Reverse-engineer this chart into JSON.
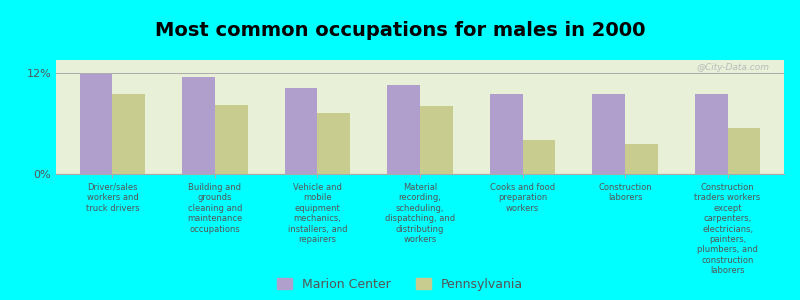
{
  "title": "Most common occupations for males in 2000",
  "categories": [
    "Driver/sales\nworkers and\ntruck drivers",
    "Building and\ngrounds\ncleaning and\nmaintenance\noccupations",
    "Vehicle and\nmobile\nequipment\nmechanics,\ninstallers, and\nrepairers",
    "Material\nrecording,\nscheduling,\ndispatching, and\ndistributing\nworkers",
    "Cooks and food\npreparation\nworkers",
    "Construction\nlaborers",
    "Construction\ntraders workers\nexcept\ncarpenters,\nelectricians,\npainters,\nplumbers, and\nconstruction\nlaborers"
  ],
  "marion_center": [
    11.8,
    11.5,
    10.2,
    10.5,
    9.5,
    9.5,
    9.5
  ],
  "pennsylvania": [
    9.5,
    8.2,
    7.2,
    8.0,
    4.0,
    3.5,
    5.5
  ],
  "bar_color_mc": "#b09fcc",
  "bar_color_pa": "#c8cc8f",
  "background_color": "#00ffff",
  "plot_bg_color": "#e8f0d8",
  "ylim": [
    0,
    13.5
  ],
  "ytick_labels": [
    "0%",
    "12%"
  ],
  "ytick_values": [
    0,
    12
  ],
  "legend_mc": "Marion Center",
  "legend_pa": "Pennsylvania",
  "watermark": "@City-Data.com"
}
